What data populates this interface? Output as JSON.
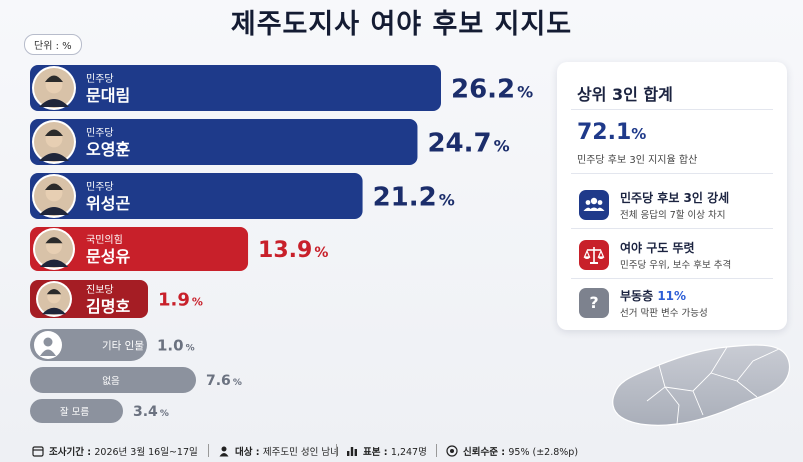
{
  "title": "제주도지사 여야 후보 지지도",
  "unit": "단위 : %",
  "chart_data": {
    "type": "bar",
    "orientation": "horizontal",
    "title": "제주도지사 여야 후보 지지도",
    "unit": "%",
    "categories": [
      "문대림",
      "오영훈",
      "위성곤",
      "문성유",
      "김명호",
      "기타 인물",
      "없음",
      "잘 모름"
    ],
    "parties": [
      "민주당",
      "민주당",
      "민주당",
      "국민의힘",
      "진보당",
      "",
      "",
      ""
    ],
    "values": [
      26.2,
      24.7,
      21.2,
      13.9,
      1.9,
      1.0,
      7.6,
      3.4
    ],
    "value_labels": [
      "26.2",
      "24.7",
      "21.2",
      "13.9",
      "1.9",
      "1.0",
      "7.6",
      "3.4"
    ],
    "colors": [
      "#1e3a8a",
      "#1e3a8a",
      "#1e3a8a",
      "#c8202a",
      "#a51d24",
      "#8c929e",
      "#8c929e",
      "#8c929e"
    ],
    "pct_colors": [
      "#1b2d6b",
      "#1b2d6b",
      "#1b2d6b",
      "#c8202a",
      "#c8202a",
      "#6b7280",
      "#6b7280",
      "#6b7280"
    ]
  },
  "summary": {
    "title": "상위 3인 합계",
    "total": "72.1",
    "total_unit": "%",
    "total_desc": "민주당 후보 3인 지지율 합산",
    "items": [
      {
        "icon": "group-icon",
        "color": "#1f3a8a",
        "heading": "민주당 후보 3인 강세",
        "heading_hl": "",
        "desc": "전체 응답의 7할 이상 차지"
      },
      {
        "icon": "scale-icon",
        "color": "#c8202a",
        "heading": "여야 구도 뚜렷",
        "heading_hl": "",
        "desc": "민주당 우위, 보수 후보 추격"
      },
      {
        "icon": "question-icon",
        "color": "#7d828e",
        "heading": "부동층 ",
        "heading_hl": "11%",
        "desc": "선거 막판 변수 가능성"
      }
    ]
  },
  "footer": {
    "period_label": "조사기간 : ",
    "period_value": "2026년 3월 16일~17일",
    "target_label": "대상 : ",
    "target_value": "제주도민 성인 남녀",
    "sample_label": "표본 : ",
    "sample_value": "1,247명",
    "confidence_label": "신뢰수준 : ",
    "confidence_value": "95% (±2.8%p)"
  }
}
